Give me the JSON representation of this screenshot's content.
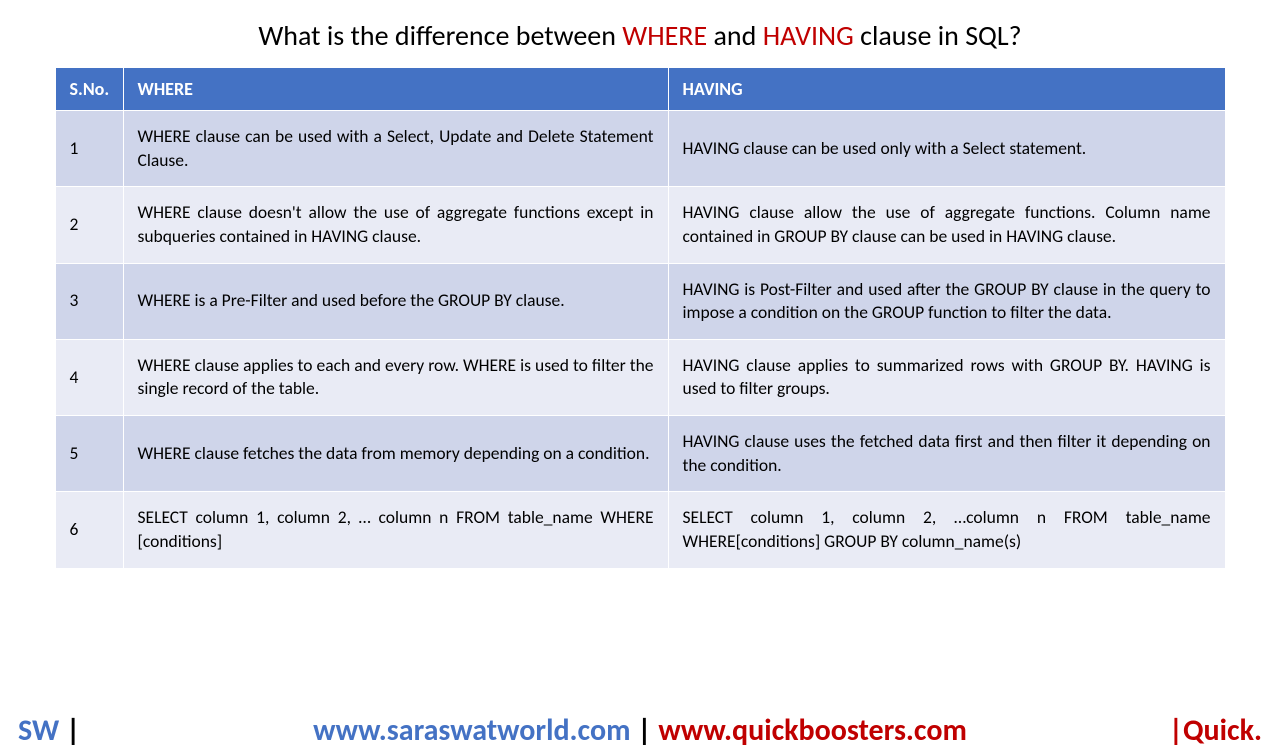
{
  "title": {
    "pre": "What is the difference between ",
    "kw1": "WHERE",
    "mid": " and ",
    "kw2": "HAVING",
    "post": " clause in SQL?"
  },
  "table": {
    "columns": {
      "sno": "S.No.",
      "where": "WHERE",
      "having": "HAVING"
    },
    "rows": [
      {
        "n": "1",
        "w": "WHERE clause can be used with a Select, Update and Delete Statement Clause.",
        "h": "HAVING clause can be used only with a Select statement."
      },
      {
        "n": "2",
        "w": "WHERE clause doesn't allow the use of aggregate functions except in subqueries contained in HAVING clause.",
        "h": "HAVING clause allow the use of aggregate functions. Column name contained in GROUP BY clause can be used in HAVING clause."
      },
      {
        "n": "3",
        "w": "WHERE is a Pre-Filter and used before the GROUP BY clause.",
        "h": "HAVING is Post-Filter and used after the GROUP BY clause in the query to impose a condition on the GROUP function to filter the data."
      },
      {
        "n": "4",
        "w": "WHERE clause applies to each and every row. WHERE is used to filter the single record of the table.",
        "h": "HAVING clause applies to summarized rows with GROUP BY. HAVING is used to filter groups."
      },
      {
        "n": "5",
        "w": "WHERE clause fetches the data from memory depending on a condition.",
        "h": "HAVING clause uses the fetched data first and then filter it depending on the condition."
      },
      {
        "n": "6",
        "w": "SELECT column 1, column 2, … column n FROM table_name  WHERE [conditions]",
        "h": "SELECT column 1, column 2, …column n FROM table_name WHERE[conditions]  GROUP BY column_name(s)"
      }
    ]
  },
  "footer": {
    "sw": "SW",
    "bar": " | ",
    "url1": "www.saraswatworld.com",
    "pipe": " | ",
    "url2": "www.quickboosters.com",
    "right": "|Quick."
  },
  "style": {
    "header_bg": "#4472c4",
    "row_odd_bg": "#cfd5ea",
    "row_even_bg": "#e9ebf5",
    "title_kw_color": "#c00000",
    "footer_blue": "#4472c4",
    "footer_red": "#c00000",
    "font_title": 28,
    "font_cell": 17.5,
    "font_footer": 30
  }
}
